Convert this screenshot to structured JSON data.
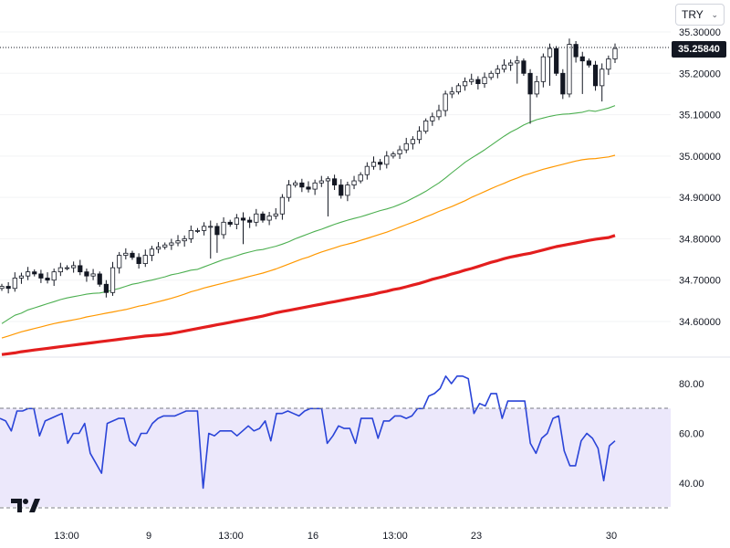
{
  "currency": {
    "selected": "TRY"
  },
  "current_price": {
    "value": 35.2584,
    "label": "35.25840"
  },
  "colors": {
    "candle_border": "#131722",
    "ma_short": "#4caf50",
    "ma_mid": "#ff9800",
    "ma_long": "#e31e1e",
    "rsi_line": "#2a44d8",
    "rsi_band": "#ece8fb"
  },
  "chart_data": [
    {
      "type": "candlestick",
      "x_tick_labels": [
        "13:00",
        "9",
        "13:00",
        "16",
        "13:00",
        "23",
        "30"
      ],
      "y_tick_labels": [
        "34.60000",
        "34.70000",
        "34.80000",
        "34.90000",
        "35.00000",
        "35.10000",
        "35.20000",
        "35.30000"
      ],
      "ylim": [
        34.525,
        35.33
      ],
      "grid": true,
      "close": [
        34.685,
        34.68,
        34.705,
        34.71,
        34.72,
        34.715,
        34.705,
        34.7,
        34.72,
        34.73,
        34.73,
        34.735,
        34.72,
        34.71,
        34.715,
        34.69,
        34.67,
        34.73,
        34.76,
        34.765,
        34.755,
        34.74,
        34.76,
        34.775,
        34.78,
        34.785,
        34.79,
        34.795,
        34.8,
        34.82,
        34.82,
        34.83,
        34.83,
        34.81,
        34.84,
        34.835,
        34.85,
        34.845,
        34.84,
        34.86,
        34.845,
        34.855,
        34.86,
        34.9,
        34.93,
        34.935,
        34.925,
        34.92,
        34.935,
        34.94,
        34.945,
        34.93,
        34.905,
        34.93,
        34.94,
        34.955,
        34.975,
        34.985,
        34.98,
        35.0,
        35.005,
        35.015,
        35.03,
        35.04,
        35.06,
        35.085,
        35.095,
        35.11,
        35.15,
        35.155,
        35.17,
        35.18,
        35.185,
        35.175,
        35.19,
        35.2,
        35.21,
        35.22,
        35.225,
        35.23,
        35.2,
        35.15,
        35.18,
        35.24,
        35.26,
        35.2,
        35.15,
        35.27,
        35.24,
        35.23,
        35.22,
        35.17,
        35.21,
        35.235,
        35.26
      ],
      "series": [
        {
          "name": "",
          "kind": "moving-average",
          "values": [
            34.595,
            34.605,
            34.615,
            34.62,
            34.628,
            34.633,
            34.638,
            34.643,
            34.648,
            34.653,
            34.657,
            34.66,
            34.663,
            34.666,
            34.668,
            34.669,
            34.672,
            34.676,
            34.68,
            34.685,
            34.69,
            34.693,
            34.697,
            34.7,
            34.704,
            34.708,
            34.713,
            34.716,
            34.72,
            34.724,
            34.726,
            34.732,
            34.738,
            34.744,
            34.75,
            34.754,
            34.759,
            34.764,
            34.768,
            34.772,
            34.774,
            34.778,
            34.782,
            34.787,
            34.793,
            34.8,
            34.806,
            34.812,
            34.818,
            34.823,
            34.829,
            34.835,
            34.84,
            34.845,
            34.849,
            34.853,
            34.858,
            34.863,
            34.868,
            34.872,
            34.877,
            34.883,
            34.89,
            34.898,
            34.906,
            34.915,
            34.925,
            34.935,
            34.947,
            34.96,
            34.972,
            34.985,
            34.995,
            35.005,
            35.015,
            35.026,
            35.037,
            35.048,
            35.058,
            35.066,
            35.075,
            35.082,
            35.088,
            35.092,
            35.096,
            35.099,
            35.101,
            35.102,
            35.104,
            35.106,
            35.11,
            35.108,
            35.112,
            35.116,
            35.122
          ]
        },
        {
          "name": "",
          "kind": "moving-average",
          "values": [
            34.56,
            34.565,
            34.57,
            34.575,
            34.579,
            34.583,
            34.587,
            34.591,
            34.595,
            34.598,
            34.601,
            34.604,
            34.607,
            34.611,
            34.614,
            34.617,
            34.62,
            34.623,
            34.626,
            34.629,
            34.633,
            34.637,
            34.64,
            34.644,
            34.648,
            34.652,
            34.656,
            34.661,
            34.666,
            34.672,
            34.676,
            34.681,
            34.685,
            34.689,
            34.693,
            34.697,
            34.701,
            34.705,
            34.709,
            34.713,
            34.717,
            34.722,
            34.727,
            34.733,
            34.739,
            34.745,
            34.751,
            34.756,
            34.762,
            34.768,
            34.773,
            34.778,
            34.783,
            34.787,
            34.791,
            34.796,
            34.801,
            34.806,
            34.811,
            34.816,
            34.822,
            34.828,
            34.834,
            34.84,
            34.846,
            34.853,
            34.859,
            34.866,
            34.872,
            34.878,
            34.885,
            34.892,
            34.9,
            34.907,
            34.914,
            34.921,
            34.928,
            34.934,
            34.941,
            34.947,
            34.953,
            34.958,
            34.963,
            34.968,
            34.972,
            34.976,
            34.98,
            34.984,
            34.988,
            34.991,
            34.993,
            34.994,
            34.996,
            34.998,
            35.002
          ]
        },
        {
          "name": "",
          "kind": "moving-average",
          "values": [
            34.52,
            34.522,
            34.524,
            34.527,
            34.529,
            34.531,
            34.533,
            34.535,
            34.537,
            34.539,
            34.541,
            34.543,
            34.545,
            34.547,
            34.549,
            34.551,
            34.553,
            34.555,
            34.557,
            34.559,
            34.561,
            34.563,
            34.565,
            34.566,
            34.567,
            34.569,
            34.571,
            34.574,
            34.577,
            34.58,
            34.583,
            34.586,
            34.589,
            34.592,
            34.595,
            34.598,
            34.601,
            34.604,
            34.607,
            34.61,
            34.613,
            34.617,
            34.621,
            34.624,
            34.627,
            34.63,
            34.633,
            34.636,
            34.639,
            34.642,
            34.645,
            34.648,
            34.651,
            34.654,
            34.657,
            34.66,
            34.663,
            34.666,
            34.67,
            34.673,
            34.677,
            34.68,
            34.684,
            34.688,
            34.692,
            34.697,
            34.702,
            34.706,
            34.71,
            34.715,
            34.719,
            34.724,
            34.728,
            34.733,
            34.738,
            34.743,
            34.747,
            34.752,
            34.756,
            34.759,
            34.762,
            34.765,
            34.769,
            34.773,
            34.777,
            34.781,
            34.784,
            34.787,
            34.79,
            34.793,
            34.796,
            34.799,
            34.801,
            34.803,
            34.808
          ]
        }
      ]
    },
    {
      "type": "line",
      "y_tick_labels": [
        "40.00",
        "60.00",
        "80.00"
      ],
      "ylim": [
        30,
        85
      ],
      "band": [
        30.5,
        70
      ],
      "series": [
        {
          "name": "",
          "values": [
            66,
            65,
            61,
            69,
            69,
            70,
            70,
            59,
            65,
            66,
            67,
            68,
            56,
            60,
            60,
            64,
            52,
            48,
            44,
            64,
            65,
            66,
            66,
            57,
            55,
            60,
            60,
            64,
            66,
            67,
            67,
            67,
            68,
            69,
            69,
            69,
            38,
            60,
            59,
            61,
            61,
            61,
            59,
            61,
            63,
            61,
            62,
            65,
            57,
            68,
            68,
            69,
            68,
            67,
            69,
            70,
            70,
            70,
            56,
            59,
            63,
            62,
            62,
            56,
            66,
            66,
            66,
            58,
            65,
            65,
            67,
            67,
            66,
            67,
            70,
            70,
            75,
            76,
            78,
            83,
            80,
            83,
            83,
            82,
            68,
            72,
            71,
            76,
            76,
            66,
            73,
            73,
            73,
            73,
            56,
            52,
            58,
            60,
            66,
            67,
            53,
            47,
            47,
            57,
            60,
            58,
            54,
            41,
            55,
            57
          ]
        }
      ]
    }
  ]
}
